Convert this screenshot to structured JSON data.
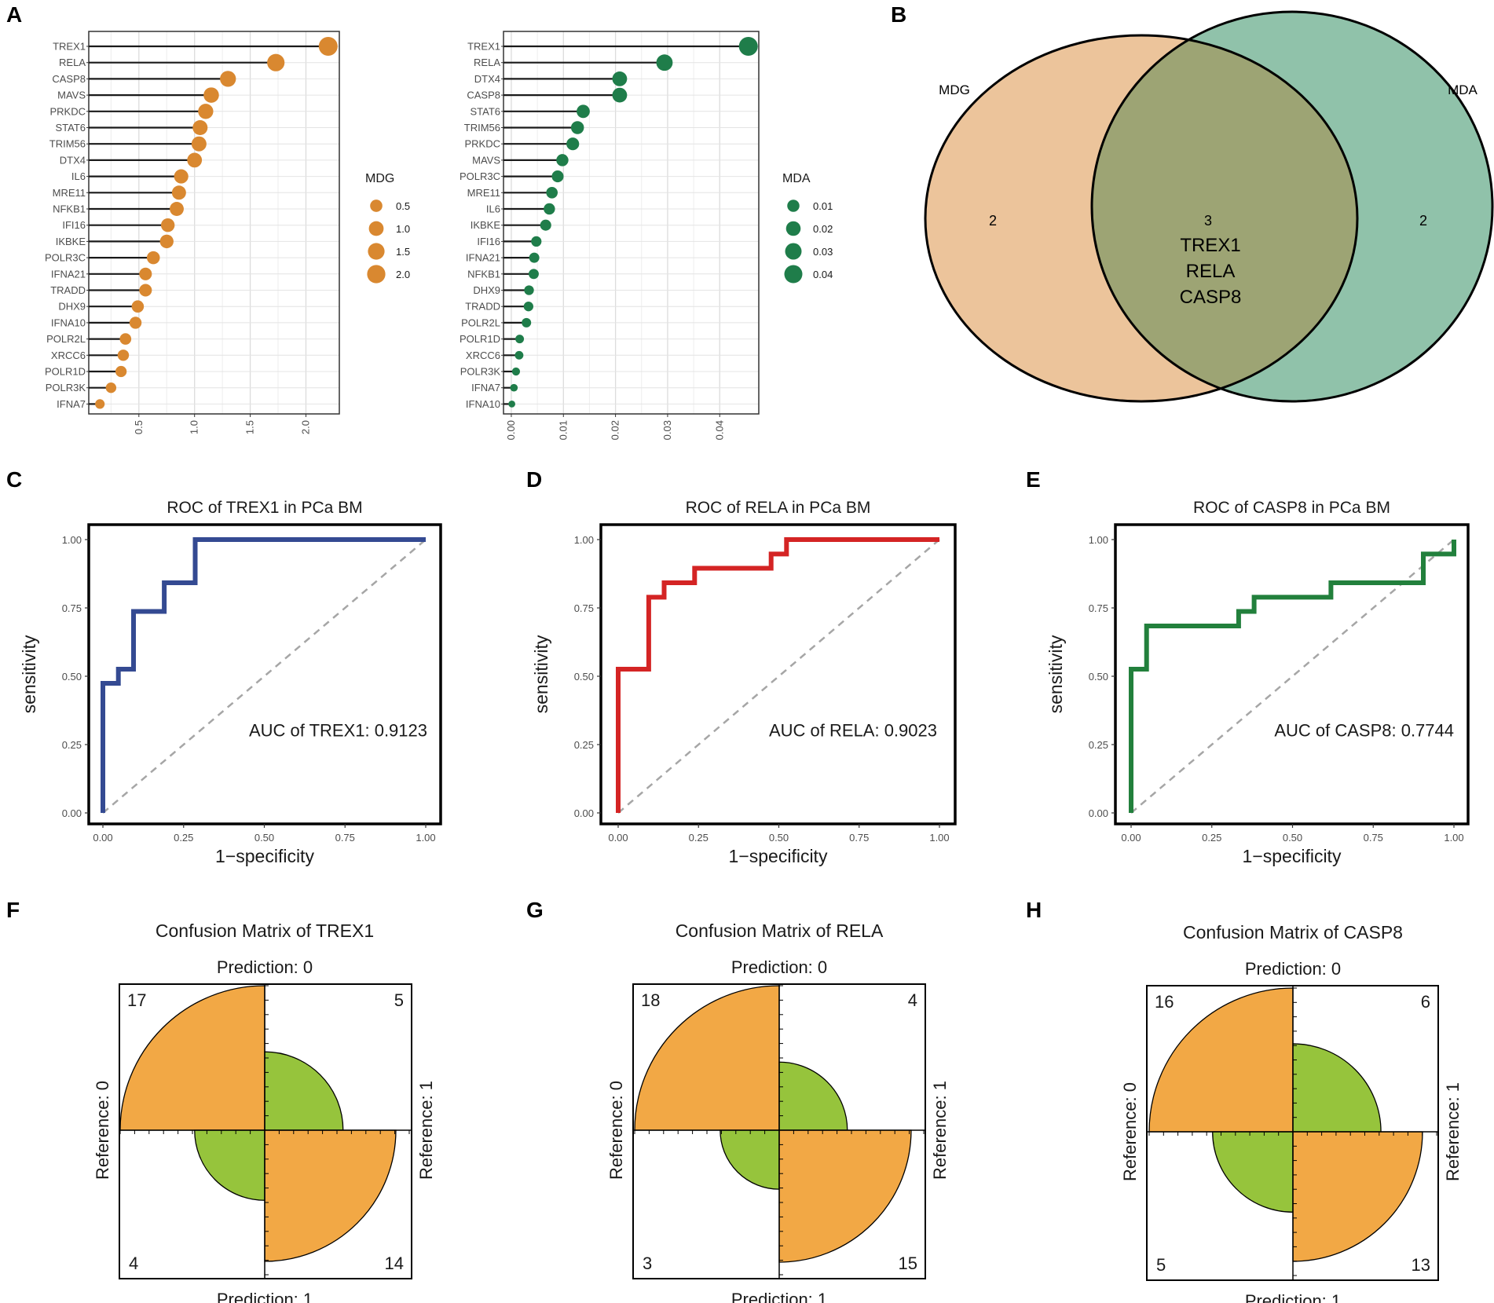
{
  "panel_letters": {
    "a": "A",
    "b": "B",
    "c": "C",
    "d": "D",
    "e": "E",
    "f": "F",
    "g": "G",
    "h": "H"
  },
  "chart_data": [
    {
      "id": "A1",
      "type": "lollipop",
      "series": "MDG",
      "color": "#d98830",
      "categories": [
        "TREX1",
        "RELA",
        "CASP8",
        "MAVS",
        "PRKDC",
        "STAT6",
        "TRIM56",
        "DTX4",
        "IL6",
        "MRE11",
        "NFKB1",
        "IFI16",
        "IKBKE",
        "POLR3C",
        "IFNA21",
        "TRADD",
        "DHX9",
        "IFNA10",
        "POLR2L",
        "XRCC6",
        "POLR1D",
        "POLR3K",
        "IFNA7"
      ],
      "values": [
        2.2,
        1.73,
        1.3,
        1.15,
        1.1,
        1.05,
        1.04,
        1.0,
        0.88,
        0.86,
        0.84,
        0.76,
        0.75,
        0.63,
        0.56,
        0.56,
        0.49,
        0.47,
        0.38,
        0.36,
        0.34,
        0.25,
        0.15
      ],
      "xlim": [
        0.05,
        2.3
      ],
      "ticks": [
        0.5,
        1.0,
        1.5,
        2.0
      ],
      "tick_labels": [
        "0.5",
        "1.0",
        "1.5",
        "2.0"
      ],
      "legend": {
        "title": "MDG",
        "labels": [
          "0.5",
          "1.0",
          "1.5",
          "2.0"
        ],
        "values": [
          0.5,
          1.0,
          1.5,
          2.0
        ]
      }
    },
    {
      "id": "A2",
      "type": "lollipop",
      "series": "MDA",
      "color": "#1f7d4a",
      "categories": [
        "TREX1",
        "RELA",
        "DTX4",
        "CASP8",
        "STAT6",
        "TRIM56",
        "PRKDC",
        "MAVS",
        "POLR3C",
        "MRE11",
        "IL6",
        "IKBKE",
        "IFI16",
        "IFNA21",
        "NFKB1",
        "DHX9",
        "TRADD",
        "POLR2L",
        "POLR1D",
        "XRCC6",
        "POLR3K",
        "IFNA7",
        "IFNA10"
      ],
      "values": [
        0.0455,
        0.0294,
        0.0208,
        0.0208,
        0.0138,
        0.0127,
        0.0118,
        0.0098,
        0.0089,
        0.0078,
        0.0073,
        0.0066,
        0.0048,
        0.0044,
        0.0043,
        0.0034,
        0.0033,
        0.0029,
        0.0016,
        0.0015,
        0.0009,
        0.0005,
        0.0001
      ],
      "xlim": [
        -0.0015,
        0.0475
      ],
      "ticks": [
        0,
        0.01,
        0.02,
        0.03,
        0.04
      ],
      "tick_labels": [
        "0.00",
        "0.01",
        "0.02",
        "0.03",
        "0.04"
      ],
      "legend": {
        "title": "MDA",
        "labels": [
          "0.01",
          "0.02",
          "0.03",
          "0.04"
        ],
        "values": [
          0.01,
          0.02,
          0.03,
          0.04
        ]
      }
    },
    {
      "id": "B",
      "type": "venn",
      "sets": [
        {
          "name": "MDG",
          "only": "2"
        },
        {
          "name": "MDA",
          "only": "2"
        }
      ],
      "overlap_count": "3",
      "overlap_genes": [
        "TREX1",
        "RELA",
        "CASP8"
      ],
      "colors": {
        "left": "#ecc49b",
        "right": "#90c2aa",
        "overlap": "#9da474"
      }
    },
    {
      "id": "C",
      "type": "line",
      "title": "ROC of TREX1 in PCa BM",
      "xlabel": "1−specificity",
      "ylabel": "sensitivity",
      "auc_text": "AUC of TREX1: 0.9123",
      "color": "#344a92",
      "xlim": [
        0,
        1
      ],
      "ylim": [
        0,
        1
      ],
      "tick_labels": [
        "0.00",
        "0.25",
        "0.50",
        "0.75",
        "1.00"
      ],
      "x": [
        0,
        0,
        0.048,
        0.048,
        0.095,
        0.095,
        0.19,
        0.19,
        0.286,
        0.286,
        1
      ],
      "y": [
        0,
        0.474,
        0.474,
        0.526,
        0.526,
        0.737,
        0.737,
        0.842,
        0.842,
        1,
        1
      ]
    },
    {
      "id": "D",
      "type": "line",
      "title": "ROC of RELA in PCa BM",
      "xlabel": "1−specificity",
      "ylabel": "sensitivity",
      "auc_text": "AUC of RELA: 0.9023",
      "color": "#d42424",
      "xlim": [
        0,
        1
      ],
      "ylim": [
        0,
        1
      ],
      "tick_labels": [
        "0.00",
        "0.25",
        "0.50",
        "0.75",
        "1.00"
      ],
      "x": [
        0,
        0,
        0.095,
        0.095,
        0.143,
        0.143,
        0.238,
        0.238,
        0.476,
        0.476,
        0.524,
        0.524,
        1
      ],
      "y": [
        0,
        0.526,
        0.526,
        0.789,
        0.789,
        0.842,
        0.842,
        0.895,
        0.895,
        0.947,
        0.947,
        1,
        1
      ]
    },
    {
      "id": "E",
      "type": "line",
      "title": "ROC of CASP8 in PCa BM",
      "xlabel": "1−specificity",
      "ylabel": "sensitivity",
      "auc_text": "AUC of CASP8: 0.7744",
      "color": "#22803c",
      "xlim": [
        0,
        1
      ],
      "ylim": [
        0,
        1
      ],
      "tick_labels": [
        "0.00",
        "0.25",
        "0.50",
        "0.75",
        "1.00"
      ],
      "x": [
        0,
        0,
        0.048,
        0.048,
        0.333,
        0.333,
        0.381,
        0.381,
        0.619,
        0.619,
        0.905,
        0.905,
        1,
        1
      ],
      "y": [
        0,
        0.526,
        0.526,
        0.684,
        0.684,
        0.737,
        0.737,
        0.789,
        0.789,
        0.842,
        0.842,
        0.947,
        0.947,
        1
      ]
    },
    {
      "id": "F",
      "type": "fourfold",
      "title": "Confusion Matrix of TREX1",
      "pred0": "Prediction: 0",
      "pred1": "Prediction: 1",
      "ref0": "Reference: 0",
      "ref1": "Reference: 1",
      "cells": {
        "tl": 17,
        "tr": 5,
        "bl": 4,
        "br": 14
      },
      "colors": {
        "correct": "#f2a845",
        "wrong": "#96c43c"
      }
    },
    {
      "id": "G",
      "type": "fourfold",
      "title": "Confusion Matrix of RELA",
      "pred0": "Prediction: 0",
      "pred1": "Prediction: 1",
      "ref0": "Reference: 0",
      "ref1": "Reference: 1",
      "cells": {
        "tl": 18,
        "tr": 4,
        "bl": 3,
        "br": 15
      },
      "colors": {
        "correct": "#f2a845",
        "wrong": "#96c43c"
      }
    },
    {
      "id": "H",
      "type": "fourfold",
      "title": "Confusion Matrix of CASP8",
      "pred0": "Prediction: 0",
      "pred1": "Prediction: 1",
      "ref0": "Reference: 0",
      "ref1": "Reference: 1",
      "cells": {
        "tl": 16,
        "tr": 6,
        "bl": 5,
        "br": 13
      },
      "colors": {
        "correct": "#f2a845",
        "wrong": "#96c43c"
      }
    }
  ]
}
